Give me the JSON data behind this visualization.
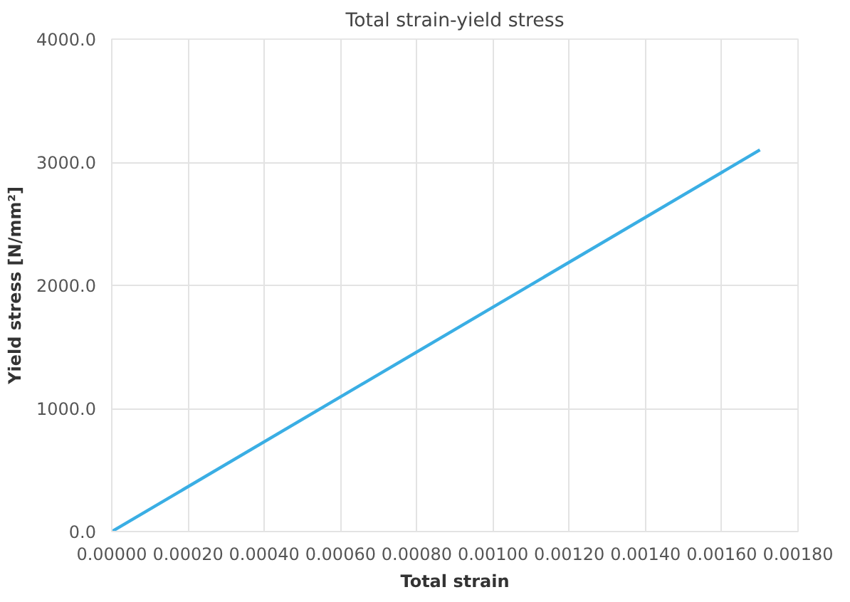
{
  "chart_data": {
    "type": "line",
    "title": "Total strain-yield stress",
    "xlabel": "Total strain",
    "ylabel": "Yield stress [N/mm²]",
    "x": [
      0,
      0.0017
    ],
    "series": [
      {
        "color": "#3aaee4",
        "values": [
          0,
          3100
        ]
      }
    ],
    "xlim": [
      0,
      0.0018
    ],
    "xticks": [
      {
        "value": 0,
        "label": "0.00000"
      },
      {
        "value": 0.0002,
        "label": "0.00020"
      },
      {
        "value": 0.0004,
        "label": "0.00040"
      },
      {
        "value": 0.0006,
        "label": "0.00060"
      },
      {
        "value": 0.0008,
        "label": "0.00080"
      },
      {
        "value": 0.001,
        "label": "0.00100"
      },
      {
        "value": 0.0012,
        "label": "0.00120"
      },
      {
        "value": 0.0014,
        "label": "0.00140"
      },
      {
        "value": 0.0016,
        "label": "0.00160"
      },
      {
        "value": 0.0018,
        "label": "0.00180"
      }
    ],
    "ylim": [
      0,
      4000
    ],
    "yticks": [
      {
        "value": 0,
        "label": "0.0"
      },
      {
        "value": 1000,
        "label": "1000.0"
      },
      {
        "value": 2000,
        "label": "2000.0"
      },
      {
        "value": 3000,
        "label": "3000.0"
      },
      {
        "value": 4000,
        "label": "4000.0"
      }
    ],
    "grid": true
  }
}
